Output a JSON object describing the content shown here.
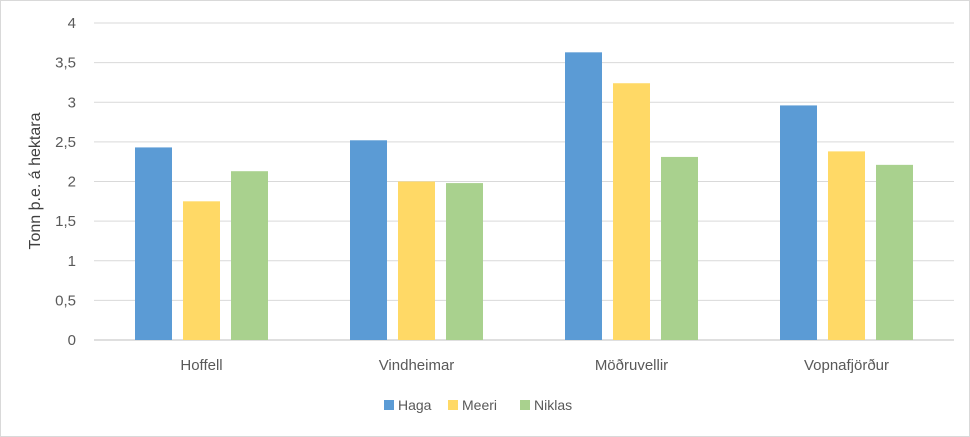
{
  "chart_data": {
    "type": "bar",
    "ylabel": "Tonn þ.e. á hektara",
    "ylim": [
      0,
      4
    ],
    "yticks": [
      "0",
      "0,5",
      "1",
      "1,5",
      "2",
      "2,5",
      "3",
      "3,5",
      "4"
    ],
    "ytick_values": [
      0,
      0.5,
      1,
      1.5,
      2,
      2.5,
      3,
      3.5,
      4
    ],
    "categories": [
      "Hoffell",
      "Vindheimar",
      "Möðruvellir",
      "Vopnafjörður"
    ],
    "series": [
      {
        "name": "Haga",
        "color": "#5b9bd5",
        "values": [
          2.43,
          2.52,
          3.63,
          2.96
        ]
      },
      {
        "name": "Meeri",
        "color": "#ffd966",
        "values": [
          1.75,
          2.0,
          3.24,
          2.38
        ]
      },
      {
        "name": "Niklas",
        "color": "#a9d18e",
        "values": [
          2.13,
          1.98,
          2.31,
          2.21
        ]
      }
    ],
    "grid": true,
    "legend": "bottom"
  }
}
